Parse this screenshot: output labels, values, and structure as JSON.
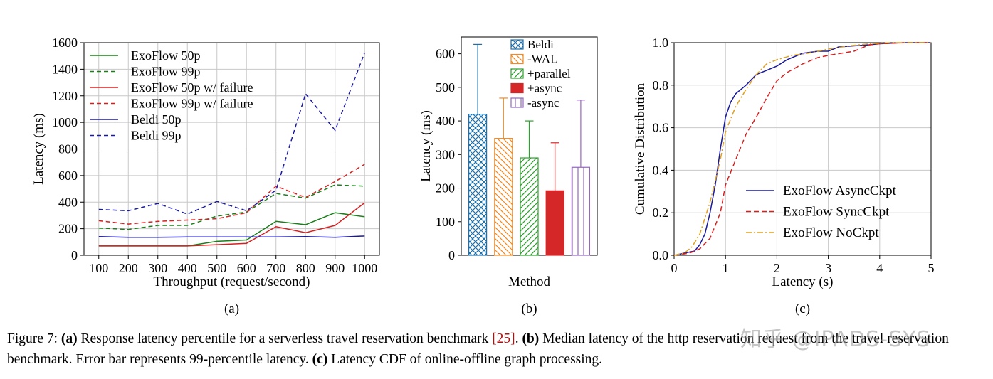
{
  "chart_data": [
    {
      "type": "line",
      "panel_label": "(a)",
      "xlabel": "Throughput (request/second)",
      "ylabel": "Latency (ms)",
      "ylim": [
        0,
        1600
      ],
      "xticks": [
        "100",
        "200",
        "300",
        "400",
        "500",
        "600",
        "700",
        "800",
        "900",
        "1000"
      ],
      "yticks": [
        "0",
        "200",
        "400",
        "600",
        "800",
        "1000",
        "1200",
        "1400",
        "1600"
      ],
      "grid": true,
      "legend_position": "top-left",
      "x": [
        100,
        200,
        300,
        400,
        500,
        600,
        700,
        800,
        900,
        1000
      ],
      "series": [
        {
          "name": "ExoFlow 50p",
          "color": "#1a7f1a",
          "dash": false,
          "values": [
            70,
            70,
            70,
            70,
            105,
            115,
            255,
            230,
            320,
            290
          ]
        },
        {
          "name": "ExoFlow 99p",
          "color": "#1a7f1a",
          "dash": true,
          "values": [
            205,
            195,
            225,
            225,
            295,
            325,
            465,
            430,
            530,
            520
          ]
        },
        {
          "name": "ExoFlow 50p w/ failure",
          "color": "#d62020",
          "dash": false,
          "values": [
            70,
            70,
            70,
            70,
            80,
            90,
            215,
            170,
            225,
            395
          ]
        },
        {
          "name": "ExoFlow 99p w/ failure",
          "color": "#d62020",
          "dash": true,
          "values": [
            260,
            235,
            255,
            265,
            275,
            320,
            520,
            435,
            555,
            685
          ]
        },
        {
          "name": "Beldi 50p",
          "color": "#1a1aa0",
          "dash": false,
          "values": [
            140,
            135,
            135,
            138,
            138,
            138,
            138,
            140,
            135,
            145
          ]
        },
        {
          "name": "Beldi 99p",
          "color": "#1a1aa0",
          "dash": true,
          "values": [
            345,
            335,
            390,
            310,
            405,
            335,
            490,
            1215,
            940,
            1525
          ]
        }
      ]
    },
    {
      "type": "bar",
      "panel_label": "(b)",
      "xlabel": "Method",
      "ylabel": "Latency (ms)",
      "ylim": [
        0,
        650
      ],
      "yticks": [
        "0",
        "100",
        "200",
        "300",
        "400",
        "500",
        "600"
      ],
      "legend_position": "top-right",
      "categories": [
        "Beldi",
        "-WAL",
        "+parallel",
        "+async",
        "-async"
      ],
      "series": [
        {
          "name": "Beldi",
          "color": "#1f6fa8",
          "hatch": "cross",
          "value": 420,
          "error_upper": 628
        },
        {
          "name": "-WAL",
          "color": "#f08a24",
          "hatch": "backslash",
          "value": 348,
          "error_upper": 468
        },
        {
          "name": "+parallel",
          "color": "#2ca02c",
          "hatch": "slash",
          "value": 290,
          "error_upper": 400
        },
        {
          "name": "+async",
          "color": "#d62728",
          "hatch": "solid",
          "value": 192,
          "error_upper": 335
        },
        {
          "name": "-async",
          "color": "#9467bd",
          "hatch": "vertical",
          "value": 262,
          "error_upper": 462
        }
      ]
    },
    {
      "type": "line",
      "panel_label": "(c)",
      "xlabel": "Latency (s)",
      "ylabel": "Cumulative Distribution",
      "xlim": [
        0,
        5
      ],
      "ylim": [
        0,
        1
      ],
      "xticks": [
        "0",
        "1",
        "2",
        "3",
        "4",
        "5"
      ],
      "yticks": [
        "0.0",
        "0.2",
        "0.4",
        "0.6",
        "0.8",
        "1.0"
      ],
      "grid": true,
      "legend_position": "bottom-right",
      "series": [
        {
          "name": "ExoFlow AsyncCkpt",
          "color": "#1a1aa0",
          "dash": "solid",
          "points": [
            [
              0,
              0
            ],
            [
              0.2,
              0.01
            ],
            [
              0.4,
              0.02
            ],
            [
              0.5,
              0.05
            ],
            [
              0.6,
              0.1
            ],
            [
              0.7,
              0.2
            ],
            [
              0.8,
              0.33
            ],
            [
              0.9,
              0.5
            ],
            [
              1.0,
              0.65
            ],
            [
              1.1,
              0.72
            ],
            [
              1.2,
              0.76
            ],
            [
              1.4,
              0.8
            ],
            [
              1.6,
              0.85
            ],
            [
              1.8,
              0.87
            ],
            [
              2.0,
              0.89
            ],
            [
              2.2,
              0.92
            ],
            [
              2.5,
              0.95
            ],
            [
              2.8,
              0.96
            ],
            [
              3.0,
              0.96
            ],
            [
              3.2,
              0.98
            ],
            [
              3.5,
              0.985
            ],
            [
              3.8,
              0.99
            ],
            [
              4.0,
              0.995
            ],
            [
              4.5,
              1.0
            ],
            [
              5,
              1.0
            ]
          ]
        },
        {
          "name": "ExoFlow SyncCkpt",
          "color": "#d62020",
          "dash": "dashed",
          "points": [
            [
              0,
              0
            ],
            [
              0.3,
              0.01
            ],
            [
              0.5,
              0.03
            ],
            [
              0.7,
              0.08
            ],
            [
              0.9,
              0.2
            ],
            [
              1.0,
              0.33
            ],
            [
              1.2,
              0.45
            ],
            [
              1.4,
              0.57
            ],
            [
              1.6,
              0.65
            ],
            [
              1.8,
              0.74
            ],
            [
              2.0,
              0.82
            ],
            [
              2.2,
              0.86
            ],
            [
              2.5,
              0.9
            ],
            [
              2.8,
              0.93
            ],
            [
              3.0,
              0.94
            ],
            [
              3.5,
              0.96
            ],
            [
              3.8,
              0.99
            ],
            [
              4.0,
              0.995
            ],
            [
              4.5,
              1.0
            ],
            [
              5,
              1.0
            ]
          ]
        },
        {
          "name": "ExoFlow NoCkpt",
          "color": "#e0a020",
          "dash": "dashdot",
          "points": [
            [
              0,
              0
            ],
            [
              0.2,
              0.01
            ],
            [
              0.35,
              0.04
            ],
            [
              0.5,
              0.1
            ],
            [
              0.7,
              0.25
            ],
            [
              0.9,
              0.45
            ],
            [
              1.0,
              0.58
            ],
            [
              1.2,
              0.7
            ],
            [
              1.4,
              0.78
            ],
            [
              1.6,
              0.85
            ],
            [
              1.8,
              0.9
            ],
            [
              2.0,
              0.92
            ],
            [
              2.3,
              0.94
            ],
            [
              2.6,
              0.95
            ],
            [
              3.0,
              0.97
            ],
            [
              3.4,
              0.985
            ],
            [
              3.8,
              0.995
            ],
            [
              4.2,
              1.0
            ],
            [
              5,
              1.0
            ]
          ]
        }
      ]
    }
  ],
  "caption": {
    "fig_label": "Figure 7:",
    "a_label": "(a)",
    "a_text": " Response latency percentile for a serverless travel reservation benchmark ",
    "a_cite": "[25]",
    "b_label": "(b)",
    "b_text": " Median latency of the http reservation request from the travel reservation benchmark. Error bar represents 99-percentile latency. ",
    "c_label": "(c)",
    "c_text": " Latency CDF of online-offline graph processing."
  },
  "watermark": "知乎 @IPADS-SYS"
}
